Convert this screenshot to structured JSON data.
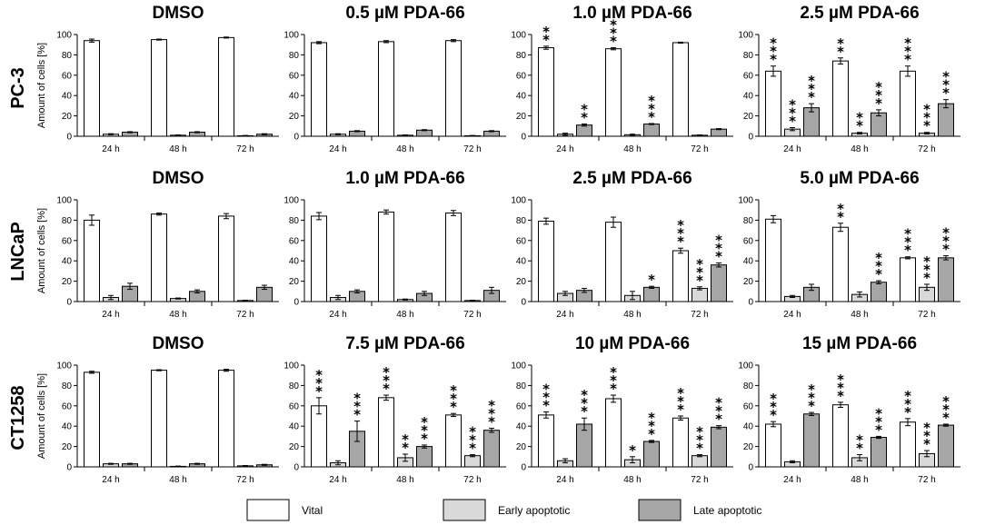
{
  "series_names": [
    "Vital",
    "Early apoptotic",
    "Late apoptotic"
  ],
  "colors": {
    "vital": "#ffffff",
    "early": "#d9d9d9",
    "late": "#a6a6a6",
    "stroke": "#000000"
  },
  "y_axis_label": "Amount of cells [%]",
  "rows": [
    "PC-3",
    "LNCaP",
    "CT1258"
  ],
  "legend": {
    "vital": "Vital",
    "early": "Early apoptotic",
    "late": "Late apoptotic"
  },
  "chart_data": [
    {
      "type": "bar",
      "title": "DMSO",
      "row": "PC-3",
      "categories": [
        "24 h",
        "48 h",
        "72 h"
      ],
      "ylim": [
        0,
        100
      ],
      "yticks": [
        0,
        20,
        40,
        60,
        80,
        100
      ],
      "ylabel": "Amount of cells [%]",
      "series": [
        {
          "name": "Vital",
          "values": [
            94,
            95,
            97
          ],
          "errors": [
            1.5,
            0.5,
            0.5
          ],
          "stars": [
            0,
            0,
            0
          ]
        },
        {
          "name": "Early apoptotic",
          "values": [
            2,
            1,
            0.5
          ],
          "errors": [
            0.5,
            0.3,
            0.3
          ],
          "stars": [
            0,
            0,
            0
          ]
        },
        {
          "name": "Late apoptotic",
          "values": [
            4,
            4,
            2
          ],
          "errors": [
            0.5,
            0.5,
            0.5
          ],
          "stars": [
            0,
            0,
            0
          ]
        }
      ]
    },
    {
      "type": "bar",
      "title": "0.5 µM PDA-66",
      "row": "PC-3",
      "categories": [
        "24 h",
        "48 h",
        "72 h"
      ],
      "ylim": [
        0,
        100
      ],
      "yticks": [
        0,
        20,
        40,
        60,
        80,
        100
      ],
      "series": [
        {
          "name": "Vital",
          "values": [
            92,
            93,
            94
          ],
          "errors": [
            1,
            1,
            1
          ],
          "stars": [
            0,
            0,
            0
          ]
        },
        {
          "name": "Early apoptotic",
          "values": [
            2,
            1,
            0.5
          ],
          "errors": [
            0.5,
            0.3,
            0.3
          ],
          "stars": [
            0,
            0,
            0
          ]
        },
        {
          "name": "Late apoptotic",
          "values": [
            5,
            6,
            5
          ],
          "errors": [
            0.5,
            0.5,
            0.5
          ],
          "stars": [
            0,
            0,
            0
          ]
        }
      ]
    },
    {
      "type": "bar",
      "title": "1.0 µM PDA-66",
      "row": "PC-3",
      "categories": [
        "24 h",
        "48 h",
        "72 h"
      ],
      "ylim": [
        0,
        100
      ],
      "yticks": [
        0,
        20,
        40,
        60,
        80,
        100
      ],
      "series": [
        {
          "name": "Vital",
          "values": [
            87,
            86,
            92
          ],
          "errors": [
            1.5,
            1,
            0.5
          ],
          "stars": [
            2,
            3,
            0
          ]
        },
        {
          "name": "Early apoptotic",
          "values": [
            2,
            1.5,
            1
          ],
          "errors": [
            1,
            0.5,
            0.3
          ],
          "stars": [
            0,
            0,
            0
          ]
        },
        {
          "name": "Late apoptotic",
          "values": [
            11,
            12,
            7
          ],
          "errors": [
            1,
            0.5,
            0.5
          ],
          "stars": [
            2,
            3,
            0
          ]
        }
      ]
    },
    {
      "type": "bar",
      "title": "2.5 µM PDA-66",
      "row": "PC-3",
      "categories": [
        "24 h",
        "48 h",
        "72 h"
      ],
      "ylim": [
        0,
        100
      ],
      "yticks": [
        0,
        20,
        40,
        60,
        80,
        100
      ],
      "series": [
        {
          "name": "Vital",
          "values": [
            64,
            74,
            64
          ],
          "errors": [
            5,
            3,
            5
          ],
          "stars": [
            3,
            2,
            3
          ]
        },
        {
          "name": "Early apoptotic",
          "values": [
            7,
            3,
            3
          ],
          "errors": [
            1.5,
            0.8,
            0.8
          ],
          "stars": [
            3,
            2,
            3
          ]
        },
        {
          "name": "Late apoptotic",
          "values": [
            28,
            23,
            32
          ],
          "errors": [
            4,
            3,
            4
          ],
          "stars": [
            3,
            3,
            3
          ]
        }
      ]
    },
    {
      "type": "bar",
      "title": "DMSO",
      "row": "LNCaP",
      "categories": [
        "24 h",
        "48 h",
        "72 h"
      ],
      "ylim": [
        0,
        100
      ],
      "yticks": [
        0,
        20,
        40,
        60,
        80,
        100
      ],
      "series": [
        {
          "name": "Vital",
          "values": [
            80,
            86,
            84
          ],
          "errors": [
            5,
            1,
            2.5
          ],
          "stars": [
            0,
            0,
            0
          ]
        },
        {
          "name": "Early apoptotic",
          "values": [
            4,
            3,
            1
          ],
          "errors": [
            2,
            0.5,
            0.3
          ],
          "stars": [
            0,
            0,
            0
          ]
        },
        {
          "name": "Late apoptotic",
          "values": [
            15,
            10,
            14
          ],
          "errors": [
            3,
            1.5,
            2
          ]
        }
      ]
    },
    {
      "type": "bar",
      "title": "1.0 µM PDA-66",
      "row": "LNCaP",
      "categories": [
        "24 h",
        "48 h",
        "72 h"
      ],
      "ylim": [
        0,
        100
      ],
      "yticks": [
        0,
        20,
        40,
        60,
        80,
        100
      ],
      "series": [
        {
          "name": "Vital",
          "values": [
            84,
            88,
            87
          ],
          "errors": [
            3.5,
            2,
            2.5
          ],
          "stars": [
            0,
            0,
            0
          ]
        },
        {
          "name": "Early apoptotic",
          "values": [
            4,
            2,
            1
          ],
          "errors": [
            2,
            0.5,
            0.3
          ],
          "stars": [
            0,
            0,
            0
          ]
        },
        {
          "name": "Late apoptotic",
          "values": [
            10,
            8,
            11
          ],
          "errors": [
            1.5,
            2,
            3
          ]
        }
      ]
    },
    {
      "type": "bar",
      "title": "2.5 µM PDA-66",
      "row": "LNCaP",
      "categories": [
        "24 h",
        "48 h",
        "72 h"
      ],
      "ylim": [
        0,
        100
      ],
      "yticks": [
        0,
        20,
        40,
        60,
        80,
        100
      ],
      "series": [
        {
          "name": "Vital",
          "values": [
            79,
            78,
            50
          ],
          "errors": [
            3,
            5,
            2.5
          ],
          "stars": [
            0,
            0,
            3
          ]
        },
        {
          "name": "Early apoptotic",
          "values": [
            8,
            6,
            13
          ],
          "errors": [
            2,
            4,
            1.5
          ],
          "stars": [
            0,
            0,
            3
          ]
        },
        {
          "name": "Late apoptotic",
          "values": [
            11,
            14,
            36
          ],
          "errors": [
            2,
            1,
            2
          ],
          "stars": [
            0,
            1,
            3
          ]
        }
      ]
    },
    {
      "type": "bar",
      "title": "5.0 µM PDA-66",
      "row": "LNCaP",
      "categories": [
        "24 h",
        "48 h",
        "72 h"
      ],
      "ylim": [
        0,
        100
      ],
      "yticks": [
        0,
        20,
        40,
        60,
        80,
        100
      ],
      "series": [
        {
          "name": "Vital",
          "values": [
            81,
            73,
            43
          ],
          "errors": [
            3.5,
            4,
            1
          ],
          "stars": [
            0,
            2,
            3
          ]
        },
        {
          "name": "Early apoptotic",
          "values": [
            5,
            7,
            14
          ],
          "errors": [
            1,
            2.5,
            3
          ],
          "stars": [
            0,
            0,
            3
          ]
        },
        {
          "name": "Late apoptotic",
          "values": [
            14,
            19,
            43
          ],
          "errors": [
            3,
            1.5,
            2
          ],
          "stars": [
            0,
            3,
            3
          ]
        }
      ]
    },
    {
      "type": "bar",
      "title": "DMSO",
      "row": "CT1258",
      "categories": [
        "24 h",
        "48 h",
        "72 h"
      ],
      "ylim": [
        0,
        100
      ],
      "yticks": [
        0,
        20,
        40,
        60,
        80,
        100
      ],
      "series": [
        {
          "name": "Vital",
          "values": [
            93,
            95,
            95
          ],
          "errors": [
            1,
            0.5,
            1
          ],
          "stars": [
            0,
            0,
            0
          ]
        },
        {
          "name": "Early apoptotic",
          "values": [
            3,
            0.5,
            1
          ],
          "errors": [
            0.5,
            0.3,
            0.3
          ],
          "stars": [
            0,
            0,
            0
          ]
        },
        {
          "name": "Late apoptotic",
          "values": [
            3,
            3,
            2
          ],
          "errors": [
            0.5,
            0.5,
            0.5
          ]
        }
      ]
    },
    {
      "type": "bar",
      "title": "7.5 µM PDA-66",
      "row": "CT1258",
      "categories": [
        "24 h",
        "48 h",
        "72 h"
      ],
      "ylim": [
        0,
        100
      ],
      "yticks": [
        0,
        20,
        40,
        60,
        80,
        100
      ],
      "series": [
        {
          "name": "Vital",
          "values": [
            60,
            68,
            51
          ],
          "errors": [
            8,
            2.5,
            1.5
          ],
          "stars": [
            3,
            3,
            3
          ]
        },
        {
          "name": "Early apoptotic",
          "values": [
            4,
            9,
            11
          ],
          "errors": [
            2,
            3.5,
            1
          ],
          "stars": [
            0,
            2,
            3
          ]
        },
        {
          "name": "Late apoptotic",
          "values": [
            35,
            20,
            36
          ],
          "errors": [
            10,
            1.5,
            2
          ],
          "stars": [
            3,
            3,
            3
          ]
        }
      ]
    },
    {
      "type": "bar",
      "title": "10 µM PDA-66",
      "row": "CT1258",
      "categories": [
        "24 h",
        "48 h",
        "72 h"
      ],
      "ylim": [
        0,
        100
      ],
      "yticks": [
        0,
        20,
        40,
        60,
        80,
        100
      ],
      "series": [
        {
          "name": "Vital",
          "values": [
            51,
            67,
            48
          ],
          "errors": [
            3,
            3.5,
            2
          ],
          "stars": [
            3,
            3,
            3
          ]
        },
        {
          "name": "Early apoptotic",
          "values": [
            6,
            7,
            11
          ],
          "errors": [
            2,
            3,
            1
          ],
          "stars": [
            0,
            1,
            3
          ]
        },
        {
          "name": "Late apoptotic",
          "values": [
            42,
            25,
            39
          ],
          "errors": [
            6,
            1,
            1.5
          ],
          "stars": [
            3,
            3,
            3
          ]
        }
      ]
    },
    {
      "type": "bar",
      "title": "15 µM PDA-66",
      "row": "CT1258",
      "categories": [
        "24 h",
        "48 h",
        "72 h"
      ],
      "ylim": [
        0,
        100
      ],
      "yticks": [
        0,
        20,
        40,
        60,
        80,
        100
      ],
      "series": [
        {
          "name": "Vital",
          "values": [
            42,
            61,
            44
          ],
          "errors": [
            2.5,
            2.5,
            3.5
          ],
          "stars": [
            3,
            3,
            3
          ]
        },
        {
          "name": "Early apoptotic",
          "values": [
            5,
            9,
            13
          ],
          "errors": [
            1,
            3,
            3
          ],
          "stars": [
            0,
            2,
            3
          ]
        },
        {
          "name": "Late apoptotic",
          "values": [
            52,
            29,
            41
          ],
          "errors": [
            1.5,
            1,
            1
          ],
          "stars": [
            3,
            3,
            3
          ]
        }
      ]
    }
  ]
}
